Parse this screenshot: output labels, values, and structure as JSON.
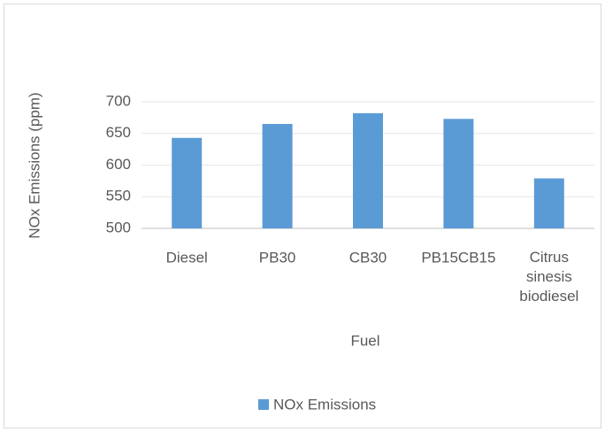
{
  "chart_data": {
    "type": "bar",
    "categories": [
      "Diesel",
      "PB30",
      "CB30",
      "PB15CB15",
      "Citrus sinesis biodiesel"
    ],
    "series": [
      {
        "name": "NOx Emissions",
        "color": "#5b9bd5",
        "values": [
          643,
          665,
          682,
          673,
          579
        ]
      }
    ],
    "x_label": "Fuel",
    "y_label": "NOx Emissions (ppm)",
    "ylim": [
      500,
      700
    ],
    "yticks": [
      500,
      550,
      600,
      650,
      700
    ],
    "grid": true,
    "legend": "bottom"
  }
}
